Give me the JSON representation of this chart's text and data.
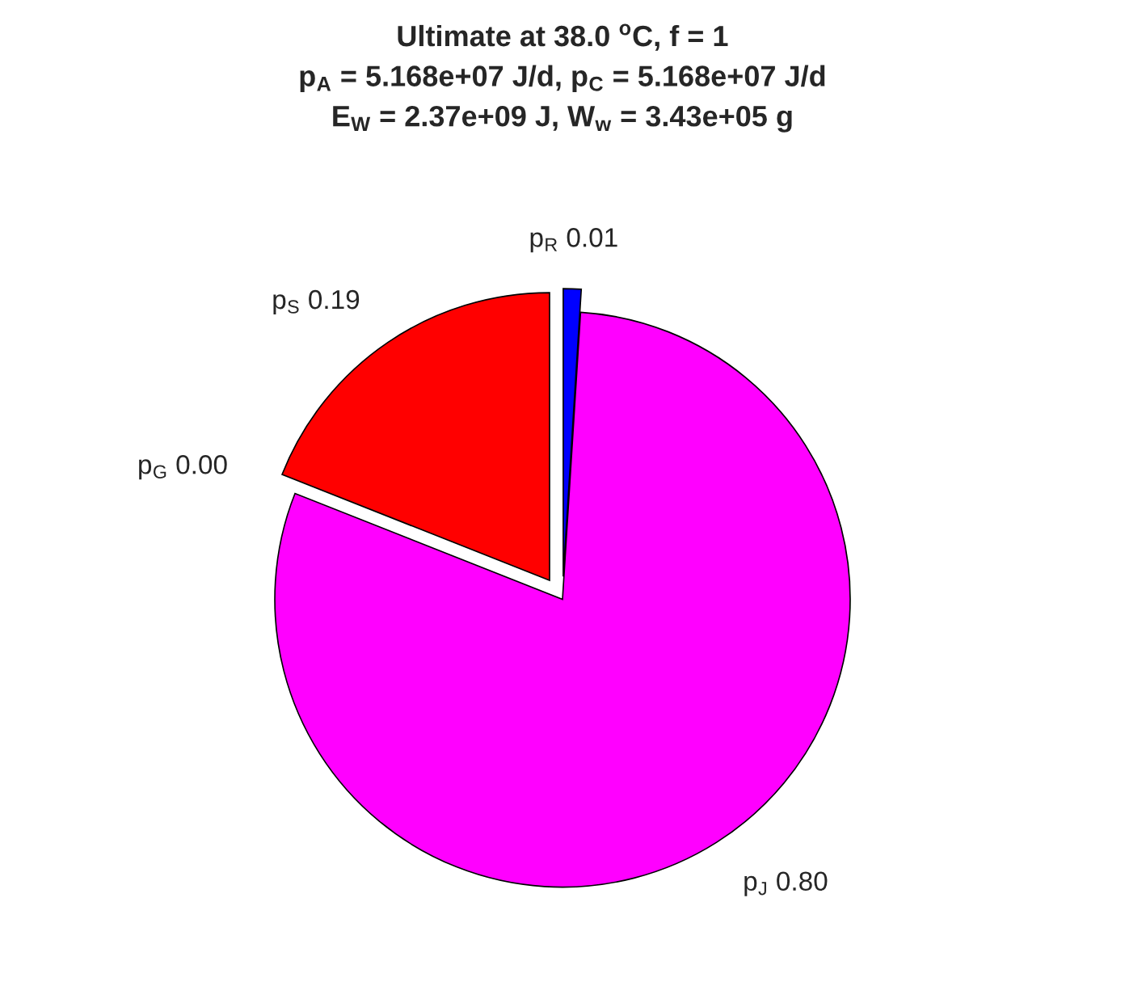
{
  "chart_data": {
    "type": "pie",
    "title": "Ultimate at 38.0 $^{o}$C, f = 1\np$_{A}$ = 5.168e+07 J/d, p$_{C}$ = 5.168e+07 J/d\nE$_{W}$ = 2.37e+09 J, W$_{w}$ = 3.43e+05 g",
    "categories": [
      "p$_{R}$",
      "p$_{J}$",
      "p$_{G}$",
      "p$_{S}$"
    ],
    "values": [
      0.01,
      0.8,
      0.0,
      0.19
    ],
    "value_labels": [
      "0.01",
      "0.80",
      "0.00",
      "0.19"
    ],
    "colors": [
      "#0000ff",
      "#ff00ff",
      "#ffffff",
      "#ff0000"
    ]
  }
}
